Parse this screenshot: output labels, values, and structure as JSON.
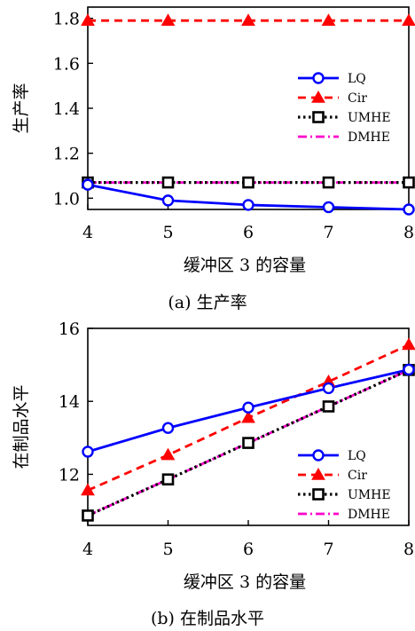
{
  "chart_data": [
    {
      "type": "line",
      "caption": "(a)  生产率",
      "xlabel": "缓冲区 3 的容量",
      "ylabel": "生产率",
      "x": [
        4,
        5,
        6,
        7,
        8
      ],
      "xlim": [
        4,
        8
      ],
      "ylim": [
        0.95,
        1.85
      ],
      "xticks": [
        "4",
        "5",
        "6",
        "7",
        "8"
      ],
      "yticks": [
        "1.0",
        "1.2",
        "1.4",
        "1.6",
        "1.8"
      ],
      "ytick_values": [
        1.0,
        1.2,
        1.4,
        1.6,
        1.8
      ],
      "grid": false,
      "legend_position": "center-right",
      "series": [
        {
          "name": "LQ",
          "values": [
            1.06,
            0.99,
            0.97,
            0.96,
            0.95
          ],
          "color": "#0000ff",
          "dash": "solid",
          "marker": "circle"
        },
        {
          "name": "Cir",
          "values": [
            1.79,
            1.79,
            1.79,
            1.79,
            1.79
          ],
          "color": "#ff0000",
          "dash": "dashed",
          "marker": "triangle"
        },
        {
          "name": "UMHE",
          "values": [
            1.07,
            1.07,
            1.07,
            1.07,
            1.07
          ],
          "color": "#000000",
          "dash": "dotted",
          "marker": "square"
        },
        {
          "name": "DMHE",
          "values": [
            1.07,
            1.07,
            1.07,
            1.07,
            1.07
          ],
          "color": "#ff00cc",
          "dash": "dashdot",
          "marker": "none"
        }
      ]
    },
    {
      "type": "line",
      "caption": "(b)  在制品水平",
      "xlabel": "缓冲区 3 的容量",
      "ylabel": "在制品水平",
      "x": [
        4,
        5,
        6,
        7,
        8
      ],
      "xlim": [
        4,
        8
      ],
      "ylim": [
        10.6,
        16.0
      ],
      "xticks": [
        "4",
        "5",
        "6",
        "7",
        "8"
      ],
      "yticks": [
        "12",
        "14",
        "16"
      ],
      "ytick_values": [
        12,
        14,
        16
      ],
      "grid": false,
      "legend_position": "bottom-right",
      "series": [
        {
          "name": "LQ",
          "values": [
            12.62,
            13.27,
            13.83,
            14.36,
            14.87
          ],
          "color": "#0000ff",
          "dash": "solid",
          "marker": "circle"
        },
        {
          "name": "Cir",
          "values": [
            11.56,
            12.53,
            13.55,
            14.54,
            15.55
          ],
          "color": "#ff0000",
          "dash": "dashed",
          "marker": "triangle"
        },
        {
          "name": "UMHE",
          "values": [
            10.87,
            11.86,
            12.86,
            13.86,
            14.86
          ],
          "color": "#000000",
          "dash": "dotted",
          "marker": "square"
        },
        {
          "name": "DMHE",
          "values": [
            10.87,
            11.86,
            12.86,
            13.86,
            14.86
          ],
          "color": "#ff00cc",
          "dash": "dashdot",
          "marker": "none"
        }
      ]
    }
  ]
}
